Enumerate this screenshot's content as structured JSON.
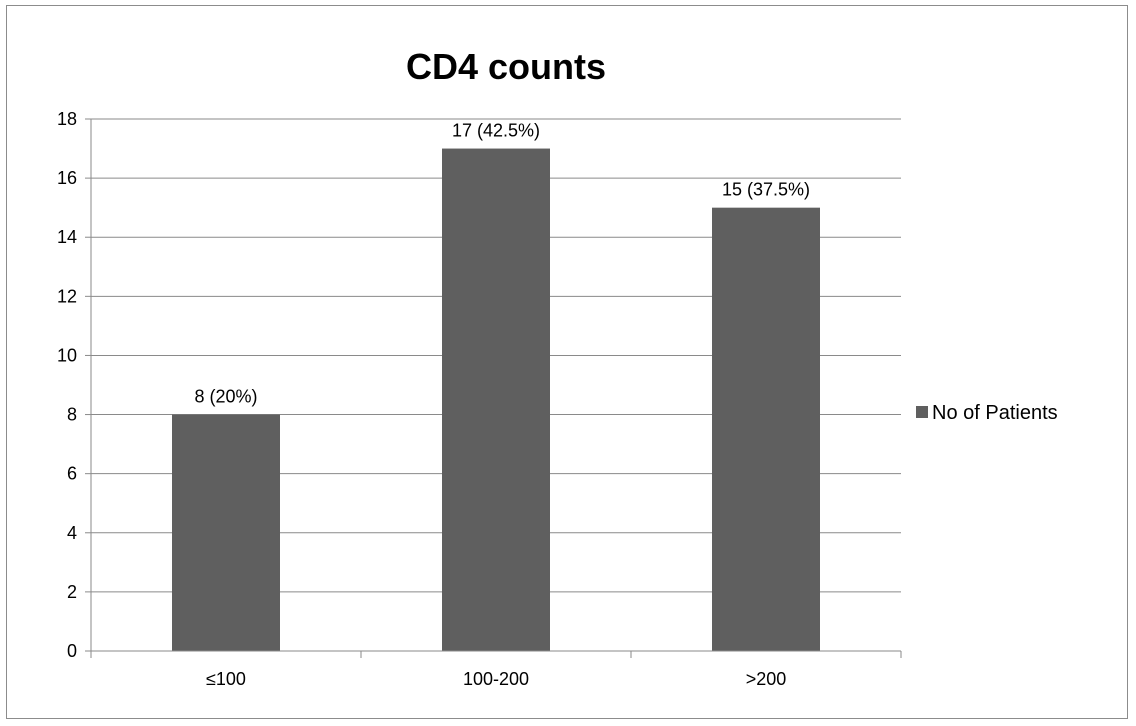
{
  "chart_data": {
    "type": "bar",
    "title": "CD4 counts",
    "xlabel": "",
    "ylabel": "",
    "categories": [
      "≤100",
      "100-200",
      ">200"
    ],
    "series": [
      {
        "name": "No of Patients",
        "values": [
          8,
          17,
          15
        ],
        "color": "#5f5f5f",
        "data_labels": [
          "8 (20%)",
          "17 (42.5%)",
          "15 (37.5%)"
        ]
      }
    ],
    "ylim": [
      0,
      18
    ],
    "ytick_step": 2,
    "grid": true,
    "legend_position": "right"
  }
}
